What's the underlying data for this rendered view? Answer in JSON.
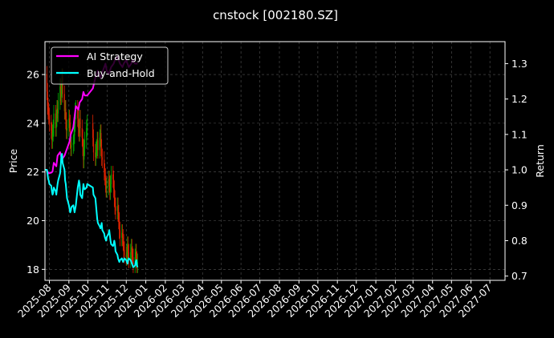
{
  "chart_data": {
    "type": "line",
    "title": "cnstock [002180.SZ]",
    "ylabel": "Price",
    "ylabel_right": "Return",
    "ylim": [
      17.55,
      27.35
    ],
    "ylim_right": [
      0.688,
      1.362
    ],
    "y_ticks": [
      18,
      20,
      22,
      24,
      26
    ],
    "y_ticks_right": [
      0.7,
      0.8,
      0.9,
      1.0,
      1.1,
      1.2,
      1.3
    ],
    "x_range": [
      "2025-07-25",
      "2027-07-25"
    ],
    "x_ticks": [
      "2025-08",
      "2025-09",
      "2025-10",
      "2025-11",
      "2025-12",
      "2026-01",
      "2026-02",
      "2026-03",
      "2026-04",
      "2026-05",
      "2026-06",
      "2026-07",
      "2026-08",
      "2026-09",
      "2026-10",
      "2026-11",
      "2026-12",
      "2027-01",
      "2027-02",
      "2027-03",
      "2027-04",
      "2027-05",
      "2027-06",
      "2027-07"
    ],
    "grid": true,
    "legend": "top-left",
    "colors": {
      "background": "#000000",
      "up": "#00aa00",
      "down": "#dd2200",
      "ai_strategy": "#ff00ff",
      "buy_and_hold": "#00ffff",
      "grid": "#555555"
    },
    "price_series": {
      "name": "",
      "x": [
        "2025-07-25",
        "2025-07-28",
        "2025-07-29",
        "2025-07-30",
        "2025-07-31",
        "2025-08-01",
        "2025-08-04",
        "2025-08-05",
        "2025-08-06",
        "2025-08-07",
        "2025-08-08",
        "2025-08-11",
        "2025-08-12",
        "2025-08-13",
        "2025-08-14",
        "2025-08-15",
        "2025-08-18",
        "2025-08-19",
        "2025-08-20",
        "2025-08-21",
        "2025-08-22",
        "2025-08-25",
        "2025-08-26",
        "2025-08-27",
        "2025-08-28",
        "2025-08-29",
        "2025-09-01",
        "2025-09-02",
        "2025-09-03",
        "2025-09-04",
        "2025-09-05",
        "2025-09-08",
        "2025-09-09",
        "2025-09-10",
        "2025-09-11",
        "2025-09-12",
        "2025-09-15",
        "2025-09-16",
        "2025-09-17",
        "2025-09-18",
        "2025-09-19",
        "2025-09-22",
        "2025-09-23",
        "2025-09-24",
        "2025-09-25",
        "2025-09-26",
        "2025-09-29",
        "2025-09-30",
        "2025-10-09",
        "2025-10-10",
        "2025-10-13",
        "2025-10-14",
        "2025-10-15",
        "2025-10-16",
        "2025-10-17",
        "2025-10-20",
        "2025-10-21",
        "2025-10-22",
        "2025-10-23",
        "2025-10-24",
        "2025-10-27",
        "2025-10-28",
        "2025-10-29",
        "2025-10-30",
        "2025-10-31",
        "2025-11-03",
        "2025-11-04",
        "2025-11-05",
        "2025-11-06",
        "2025-11-07",
        "2025-11-10",
        "2025-11-11",
        "2025-11-12",
        "2025-11-13",
        "2025-11-14",
        "2025-11-17",
        "2025-11-18",
        "2025-11-19",
        "2025-11-20",
        "2025-11-21",
        "2025-11-24",
        "2025-11-25",
        "2025-11-26",
        "2025-11-27",
        "2025-11-28",
        "2025-12-01",
        "2025-12-02",
        "2025-12-03",
        "2025-12-04",
        "2025-12-05",
        "2025-12-08",
        "2025-12-09",
        "2025-12-10",
        "2025-12-11",
        "2025-12-12",
        "2025-12-15",
        "2025-12-16",
        "2025-12-17",
        "2025-12-18",
        "2025-12-19"
      ],
      "close": [
        26.0,
        25.3,
        24.7,
        24.5,
        24.3,
        24.0,
        23.7,
        23.3,
        23.6,
        23.8,
        24.4,
        23.8,
        24.2,
        24.6,
        24.4,
        24.9,
        25.5,
        25.1,
        25.4,
        25.9,
        25.2,
        24.5,
        24.6,
        24.1,
        23.7,
        23.8,
        24.2,
        24.0,
        23.3,
        23.0,
        23.1,
        23.2,
        23.5,
        24.0,
        24.5,
        24.6,
        24.2,
        23.8,
        23.6,
        24.2,
        23.8,
        23.4,
        23.0,
        22.5,
        23.0,
        23.3,
        23.8,
        24.0,
        23.4,
        22.8,
        22.6,
        22.9,
        23.0,
        23.3,
        22.9,
        23.4,
        23.6,
        23.0,
        22.6,
        22.5,
        22.0,
        21.8,
        21.5,
        21.3,
        21.4,
        21.7,
        21.5,
        21.2,
        21.5,
        21.9,
        21.7,
        21.3,
        20.9,
        20.6,
        20.4,
        20.6,
        20.3,
        20.0,
        19.6,
        19.3,
        19.5,
        19.3,
        19.1,
        18.8,
        18.6,
        18.5,
        18.7,
        19.0,
        18.7,
        18.4,
        18.7,
        18.9,
        18.6,
        18.5,
        18.2,
        18.5,
        18.7,
        18.4,
        18.2,
        18.3
      ]
    },
    "series": [
      {
        "name": "AI Strategy",
        "x": [
          "2025-07-25",
          "2025-07-28",
          "2025-07-29",
          "2025-07-30",
          "2025-07-31",
          "2025-08-04",
          "2025-08-06",
          "2025-08-08",
          "2025-08-12",
          "2025-08-14",
          "2025-08-18",
          "2025-08-21",
          "2025-08-25",
          "2025-08-27",
          "2025-08-29",
          "2025-09-02",
          "2025-09-04",
          "2025-09-08",
          "2025-09-10",
          "2025-09-12",
          "2025-09-16",
          "2025-09-18",
          "2025-09-22",
          "2025-09-24",
          "2025-09-26",
          "2025-09-30",
          "2025-10-09",
          "2025-10-13",
          "2025-10-15",
          "2025-10-17",
          "2025-10-21",
          "2025-10-23",
          "2025-10-27",
          "2025-10-29",
          "2025-10-31",
          "2025-11-03",
          "2025-11-05",
          "2025-11-07",
          "2025-11-11",
          "2025-11-13",
          "2025-11-17",
          "2025-11-19",
          "2025-11-21",
          "2025-11-25",
          "2025-11-27",
          "2025-12-01",
          "2025-12-03",
          "2025-12-05",
          "2025-12-09",
          "2025-12-11",
          "2025-12-15",
          "2025-12-17",
          "2025-12-19"
        ],
        "values": [
          1.0,
          1.0,
          0.995,
          0.993,
          0.99,
          0.992,
          0.995,
          1.02,
          1.01,
          1.04,
          1.05,
          1.03,
          1.04,
          1.05,
          1.06,
          1.08,
          1.1,
          1.12,
          1.15,
          1.18,
          1.17,
          1.19,
          1.2,
          1.22,
          1.21,
          1.21,
          1.23,
          1.26,
          1.27,
          1.28,
          1.26,
          1.27,
          1.29,
          1.3,
          1.28,
          1.27,
          1.28,
          1.29,
          1.3,
          1.31,
          1.32,
          1.31,
          1.3,
          1.29,
          1.3,
          1.31,
          1.3,
          1.29,
          1.3,
          1.31,
          1.3,
          1.3,
          1.3
        ]
      },
      {
        "name": "Buy-and-Hold",
        "x": [
          "2025-07-25",
          "2025-07-28",
          "2025-07-29",
          "2025-07-30",
          "2025-07-31",
          "2025-08-01",
          "2025-08-04",
          "2025-08-05",
          "2025-08-06",
          "2025-08-07",
          "2025-08-08",
          "2025-08-11",
          "2025-08-12",
          "2025-08-13",
          "2025-08-14",
          "2025-08-15",
          "2025-08-18",
          "2025-08-19",
          "2025-08-20",
          "2025-08-21",
          "2025-08-22",
          "2025-08-25",
          "2025-08-26",
          "2025-08-27",
          "2025-08-28",
          "2025-08-29",
          "2025-09-01",
          "2025-09-02",
          "2025-09-03",
          "2025-09-04",
          "2025-09-05",
          "2025-09-08",
          "2025-09-09",
          "2025-09-10",
          "2025-09-11",
          "2025-09-12",
          "2025-09-15",
          "2025-09-16",
          "2025-09-17",
          "2025-09-18",
          "2025-09-19",
          "2025-09-22",
          "2025-09-23",
          "2025-09-24",
          "2025-09-25",
          "2025-09-26",
          "2025-09-29",
          "2025-09-30",
          "2025-10-09",
          "2025-10-10",
          "2025-10-13",
          "2025-10-14",
          "2025-10-15",
          "2025-10-16",
          "2025-10-17",
          "2025-10-20",
          "2025-10-21",
          "2025-10-22",
          "2025-10-23",
          "2025-10-24",
          "2025-10-27",
          "2025-10-28",
          "2025-10-29",
          "2025-10-30",
          "2025-10-31",
          "2025-11-03",
          "2025-11-04",
          "2025-11-05",
          "2025-11-06",
          "2025-11-07",
          "2025-11-10",
          "2025-11-11",
          "2025-11-12",
          "2025-11-13",
          "2025-11-14",
          "2025-11-17",
          "2025-11-18",
          "2025-11-19",
          "2025-11-20",
          "2025-11-21",
          "2025-11-24",
          "2025-11-25",
          "2025-11-26",
          "2025-11-27",
          "2025-11-28",
          "2025-12-01",
          "2025-12-02",
          "2025-12-03",
          "2025-12-04",
          "2025-12-05",
          "2025-12-08",
          "2025-12-09",
          "2025-12-10",
          "2025-12-11",
          "2025-12-12",
          "2025-12-15",
          "2025-12-16",
          "2025-12-17",
          "2025-12-18",
          "2025-12-19"
        ],
        "values": [
          1.0,
          1.0,
          0.99,
          0.975,
          0.97,
          0.96,
          0.955,
          0.94,
          0.93,
          0.935,
          0.95,
          0.94,
          0.93,
          0.945,
          0.96,
          0.97,
          0.99,
          1.01,
          1.04,
          1.045,
          1.02,
          1.0,
          0.97,
          0.96,
          0.94,
          0.92,
          0.9,
          0.89,
          0.88,
          0.885,
          0.895,
          0.9,
          0.89,
          0.88,
          0.89,
          0.9,
          0.95,
          0.96,
          0.97,
          0.96,
          0.93,
          0.92,
          0.94,
          0.96,
          0.95,
          0.945,
          0.95,
          0.96,
          0.95,
          0.93,
          0.92,
          0.9,
          0.88,
          0.86,
          0.85,
          0.84,
          0.835,
          0.84,
          0.85,
          0.83,
          0.82,
          0.81,
          0.805,
          0.8,
          0.81,
          0.82,
          0.83,
          0.815,
          0.8,
          0.79,
          0.785,
          0.79,
          0.8,
          0.79,
          0.77,
          0.76,
          0.75,
          0.745,
          0.74,
          0.745,
          0.75,
          0.745,
          0.74,
          0.745,
          0.75,
          0.745,
          0.74,
          0.735,
          0.745,
          0.75,
          0.745,
          0.74,
          0.735,
          0.73,
          0.725,
          0.73,
          0.74,
          0.745,
          0.73,
          0.725
        ]
      }
    ]
  }
}
